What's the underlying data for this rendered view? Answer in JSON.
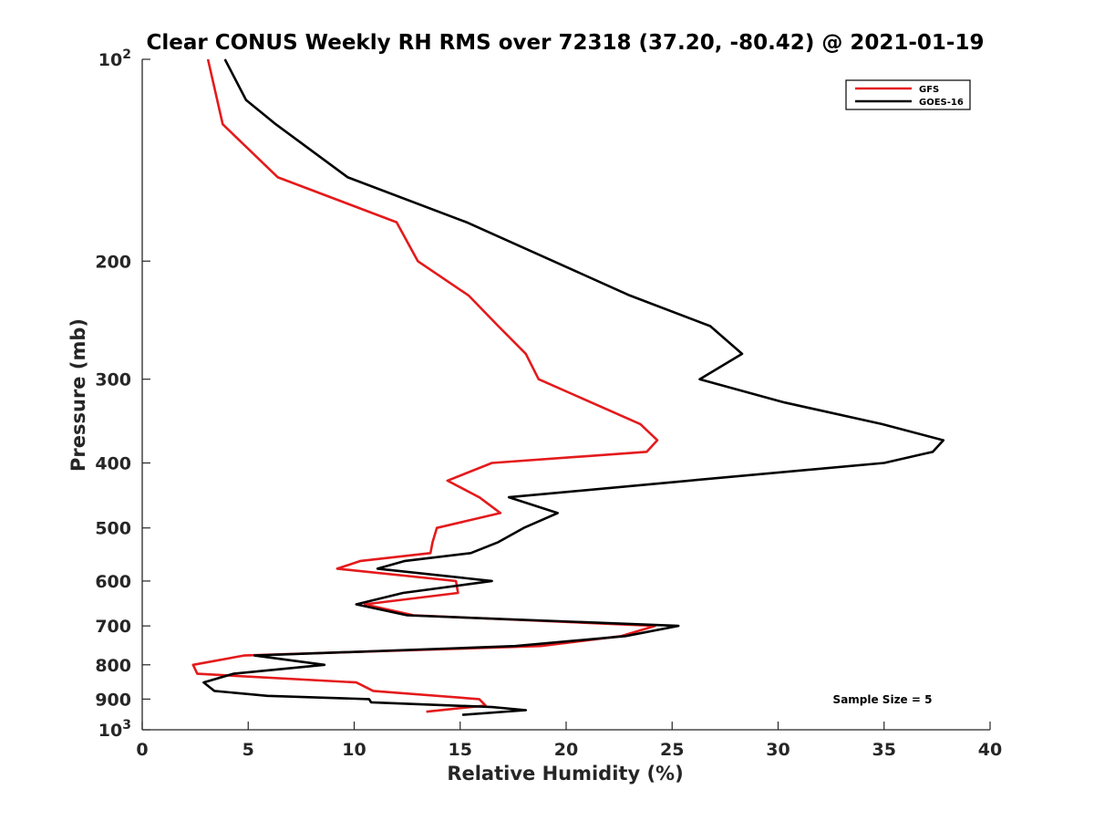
{
  "chart_data": {
    "type": "line",
    "title": "Clear CONUS Weekly RH RMS over 72318 (37.20, -80.42) @ 2021-01-19",
    "xlabel": "Relative Humidity (%)",
    "ylabel": "Pressure (mb)",
    "xlim": [
      0,
      40
    ],
    "ylim": [
      100,
      1000
    ],
    "y_scale": "log",
    "y_reversed": true,
    "x_ticks": [
      "0",
      "5",
      "10",
      "15",
      "20",
      "25",
      "30",
      "35",
      "40"
    ],
    "y_ticks": [
      {
        "value": 200,
        "label": "200"
      },
      {
        "value": 300,
        "label": "300"
      },
      {
        "value": 400,
        "label": "400"
      },
      {
        "value": 500,
        "label": "500"
      },
      {
        "value": 600,
        "label": "600"
      },
      {
        "value": 700,
        "label": "700"
      },
      {
        "value": 800,
        "label": "800"
      },
      {
        "value": 900,
        "label": "900"
      }
    ],
    "y_ticks_power": [
      {
        "value": 100,
        "base": "10",
        "exp": "2"
      },
      {
        "value": 1000,
        "base": "10",
        "exp": "3"
      }
    ],
    "grid": false,
    "legend_position": "top-right",
    "annotation": "Sample Size = 5",
    "series": [
      {
        "name": "GFS",
        "color": "#e41a1c",
        "points": [
          [
            3.1,
            100
          ],
          [
            3.8,
            125
          ],
          [
            6.4,
            150
          ],
          [
            12.0,
            175
          ],
          [
            13.0,
            200
          ],
          [
            15.4,
            225
          ],
          [
            16.8,
            250
          ],
          [
            18.1,
            275
          ],
          [
            18.7,
            300
          ],
          [
            23.5,
            350
          ],
          [
            24.3,
            370
          ],
          [
            23.8,
            385
          ],
          [
            16.5,
            400
          ],
          [
            14.4,
            425
          ],
          [
            15.9,
            450
          ],
          [
            16.9,
            475
          ],
          [
            13.9,
            500
          ],
          [
            13.7,
            525
          ],
          [
            13.6,
            545
          ],
          [
            10.3,
            560
          ],
          [
            9.2,
            575
          ],
          [
            14.8,
            600
          ],
          [
            14.9,
            625
          ],
          [
            10.5,
            650
          ],
          [
            12.8,
            675
          ],
          [
            24.2,
            700
          ],
          [
            22.6,
            725
          ],
          [
            18.8,
            750
          ],
          [
            4.8,
            775
          ],
          [
            2.4,
            800
          ],
          [
            2.6,
            825
          ],
          [
            10.1,
            850
          ],
          [
            10.9,
            875
          ],
          [
            15.9,
            900
          ],
          [
            16.2,
            920
          ],
          [
            13.4,
            940
          ]
        ]
      },
      {
        "name": "GOES-16",
        "color": "#000000",
        "points": [
          [
            3.9,
            100
          ],
          [
            4.9,
            115
          ],
          [
            6.3,
            125
          ],
          [
            9.7,
            150
          ],
          [
            15.3,
            175
          ],
          [
            19.4,
            200
          ],
          [
            23.0,
            225
          ],
          [
            26.8,
            250
          ],
          [
            28.3,
            275
          ],
          [
            26.3,
            300
          ],
          [
            30.3,
            325
          ],
          [
            34.9,
            350
          ],
          [
            37.8,
            370
          ],
          [
            37.3,
            385
          ],
          [
            35.0,
            400
          ],
          [
            25.8,
            425
          ],
          [
            17.3,
            450
          ],
          [
            19.6,
            475
          ],
          [
            18.0,
            500
          ],
          [
            16.8,
            525
          ],
          [
            15.5,
            545
          ],
          [
            12.4,
            560
          ],
          [
            11.1,
            575
          ],
          [
            16.5,
            600
          ],
          [
            12.3,
            625
          ],
          [
            10.1,
            650
          ],
          [
            12.5,
            675
          ],
          [
            25.3,
            700
          ],
          [
            22.8,
            725
          ],
          [
            17.6,
            750
          ],
          [
            5.3,
            775
          ],
          [
            8.6,
            800
          ],
          [
            4.3,
            825
          ],
          [
            2.9,
            850
          ],
          [
            3.4,
            875
          ],
          [
            5.9,
            890
          ],
          [
            10.7,
            900
          ],
          [
            10.8,
            910
          ],
          [
            16.5,
            925
          ],
          [
            18.1,
            935
          ],
          [
            15.1,
            950
          ]
        ]
      }
    ]
  }
}
